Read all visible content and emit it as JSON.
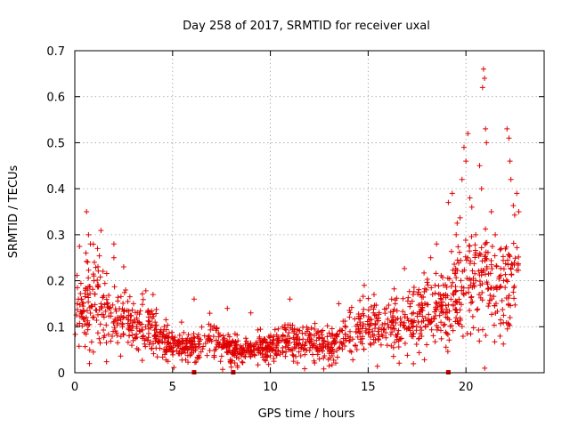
{
  "chart_data": {
    "type": "scatter",
    "title": "Day 258 of 2017, SRMTID for receiver uxal",
    "xlabel": "GPS time / hours",
    "ylabel": "SRMTID / TECUs",
    "xlim": [
      0,
      24
    ],
    "ylim": [
      0,
      0.7
    ],
    "xticks": [
      0,
      5,
      10,
      15,
      20
    ],
    "xtick_labels": [
      "0",
      "5",
      "10",
      "15",
      "20"
    ],
    "yticks": [
      0,
      0.1,
      0.2,
      0.3,
      0.4,
      0.5,
      0.6,
      0.7
    ],
    "ytick_labels": [
      "0",
      "0.1",
      "0.2",
      "0.3",
      "0.4",
      "0.5",
      "0.6",
      "0.7"
    ],
    "grid": true,
    "marker": "plus",
    "color": "#e00000",
    "series": [
      {
        "name": "SRMTID",
        "profile": {
          "x": [
            0,
            0.5,
            1,
            2,
            3,
            4,
            5,
            6,
            7,
            8,
            9,
            10,
            11,
            12,
            13,
            14,
            15,
            16,
            17,
            18,
            19,
            20,
            21,
            22,
            22.7
          ],
          "y": [
            0.15,
            0.14,
            0.17,
            0.12,
            0.1,
            0.09,
            0.06,
            0.06,
            0.07,
            0.05,
            0.05,
            0.06,
            0.07,
            0.07,
            0.06,
            0.08,
            0.1,
            0.1,
            0.11,
            0.13,
            0.15,
            0.2,
            0.2,
            0.18,
            0.22
          ]
        },
        "outliers": [
          [
            0.6,
            0.35
          ],
          [
            0.7,
            0.3
          ],
          [
            0.8,
            0.28
          ],
          [
            1.0,
            0.24
          ],
          [
            2.0,
            0.28
          ],
          [
            2.0,
            0.25
          ],
          [
            2.5,
            0.23
          ],
          [
            3.0,
            0.15
          ],
          [
            4.0,
            0.17
          ],
          [
            6.1,
            0.16
          ],
          [
            7.8,
            0.14
          ],
          [
            9.0,
            0.13
          ],
          [
            11.0,
            0.16
          ],
          [
            13.5,
            0.15
          ],
          [
            14.8,
            0.19
          ],
          [
            15.3,
            0.17
          ],
          [
            16.2,
            0.16
          ],
          [
            17.3,
            0.17
          ],
          [
            18.2,
            0.25
          ],
          [
            18.5,
            0.28
          ],
          [
            19.1,
            0.37
          ],
          [
            19.3,
            0.39
          ],
          [
            19.5,
            0.3
          ],
          [
            19.8,
            0.42
          ],
          [
            19.9,
            0.49
          ],
          [
            20.0,
            0.46
          ],
          [
            20.1,
            0.52
          ],
          [
            20.2,
            0.38
          ],
          [
            20.3,
            0.36
          ],
          [
            20.5,
            0.3
          ],
          [
            20.7,
            0.45
          ],
          [
            20.8,
            0.4
          ],
          [
            20.85,
            0.62
          ],
          [
            20.9,
            0.66
          ],
          [
            20.95,
            0.64
          ],
          [
            21.0,
            0.53
          ],
          [
            21.05,
            0.5
          ],
          [
            21.3,
            0.35
          ],
          [
            21.5,
            0.3
          ],
          [
            21.8,
            0.27
          ],
          [
            22.1,
            0.53
          ],
          [
            22.2,
            0.51
          ],
          [
            22.25,
            0.46
          ],
          [
            22.3,
            0.42
          ],
          [
            22.6,
            0.39
          ],
          [
            22.7,
            0.35
          ]
        ],
        "edge_markers_x": [
          6.1,
          8.1,
          19.1
        ]
      }
    ]
  }
}
